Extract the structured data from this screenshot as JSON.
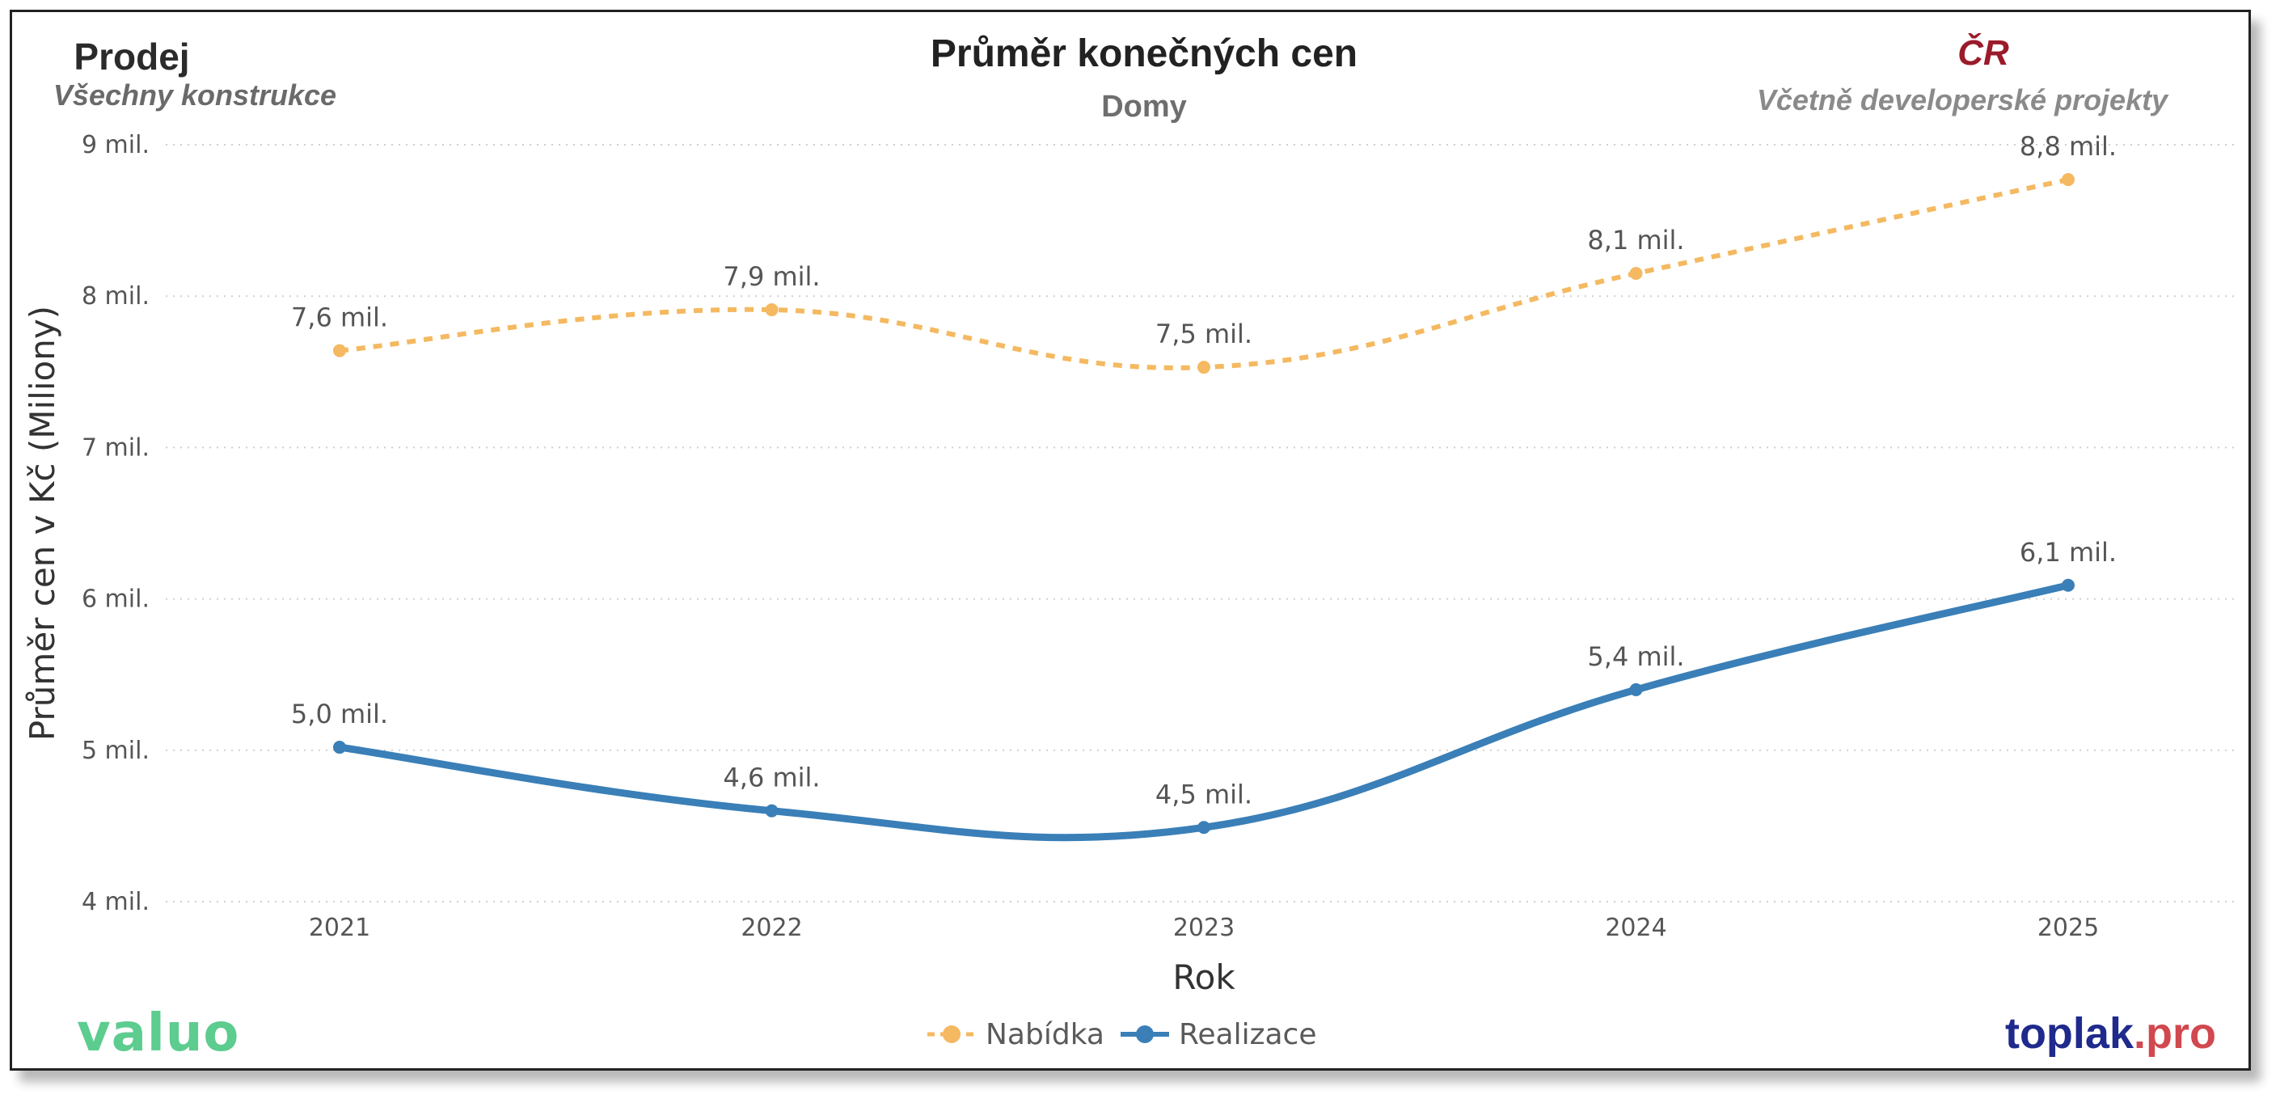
{
  "header": {
    "left_title": "Prodej",
    "left_subtitle": "Všechny konstrukce",
    "center_title": "Průměr konečných cen",
    "center_subtitle": "Domy",
    "right_title": "ČR",
    "right_subtitle": "Včetně developerské projekty"
  },
  "logos": {
    "left": "valuo",
    "right_main": "toplak",
    "right_suffix": ".pro"
  },
  "colors": {
    "nabidka": "#f4b961",
    "realizace": "#3a7fb7",
    "cr_accent": "#9b1b2b",
    "valuo_green": "#5ccc8f",
    "toplak_blue": "#1f2a8c",
    "toplak_red": "#d2484f"
  },
  "chart_data": {
    "type": "line",
    "title": "Průměr konečných cen",
    "xlabel": "Rok",
    "ylabel": "Průměr cen v Kč (Miliony)",
    "x": [
      "2021",
      "2022",
      "2023",
      "2024",
      "2025"
    ],
    "ylim": [
      4,
      9
    ],
    "yticks": [
      4,
      5,
      6,
      7,
      8,
      9
    ],
    "ytick_labels": [
      "4 mil.",
      "5 mil.",
      "6 mil.",
      "7 mil.",
      "8 mil.",
      "9 mil."
    ],
    "grid": true,
    "legend_position": "bottom-center",
    "series": [
      {
        "name": "Nabídka",
        "style": "dashed",
        "color": "#f4b961",
        "values": [
          7.64,
          7.91,
          7.53,
          8.15,
          8.77
        ],
        "labels": [
          "7,6 mil.",
          "7,9 mil.",
          "7,5 mil.",
          "8,1 mil.",
          "8,8 mil."
        ]
      },
      {
        "name": "Realizace",
        "style": "solid",
        "color": "#3a7fb7",
        "values": [
          5.02,
          4.6,
          4.49,
          5.4,
          6.09
        ],
        "labels": [
          "5,0 mil.",
          "4,6 mil.",
          "4,5 mil.",
          "5,4 mil.",
          "6,1 mil."
        ]
      }
    ]
  }
}
